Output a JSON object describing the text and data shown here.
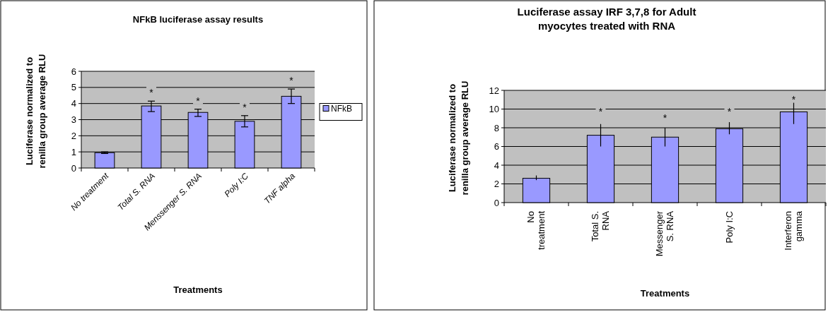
{
  "chart_data": [
    {
      "type": "bar",
      "title": "NFkB luciferase assay results",
      "xlabel": "Treatments",
      "ylabel": "Luciferase normalized to renilla group average RLU",
      "categories": [
        "No treatment",
        "Total S. RNA",
        "Menssenger S. RNA",
        "Poly I:C",
        "TNF alpha"
      ],
      "series": [
        {
          "name": "NFkB",
          "color": "#9999ff",
          "values": [
            0.95,
            3.85,
            3.45,
            2.9,
            4.45
          ],
          "errors": [
            [
              0.9,
              1.0
            ],
            [
              3.5,
              4.15
            ],
            [
              3.2,
              3.65
            ],
            [
              2.55,
              3.25
            ],
            [
              4.0,
              4.9
            ]
          ]
        }
      ],
      "ylim": [
        0,
        6
      ],
      "yticks": [
        0,
        1,
        2,
        3,
        4,
        5,
        6
      ],
      "grid": "y",
      "legend": "right",
      "annotations": [
        {
          "text": "*",
          "x": "Total S. RNA",
          "y": 4.15
        },
        {
          "text": "*",
          "x": "Menssenger S. RNA",
          "y": 3.65
        },
        {
          "text": "*",
          "x": "Poly I:C",
          "y": 3.25
        },
        {
          "text": "*",
          "x": "TNF alpha",
          "y": 4.9
        }
      ]
    },
    {
      "type": "bar",
      "title": "Luciferase assay IRF 3,7,8 for Adult myocytes treated with RNA",
      "xlabel": "Treatments",
      "ylabel": "Luciferase normalized to renilla group average RLU",
      "categories": [
        "No treatment",
        "Total S. RNA",
        "Messenger S. RNA",
        "Poly I:C",
        "Interferon gamma"
      ],
      "series": [
        {
          "color": "#9999ff",
          "values": [
            2.6,
            7.2,
            7.0,
            7.9,
            9.7
          ],
          "errors": [
            [
              2.4,
              2.9
            ],
            [
              6.0,
              8.4
            ],
            [
              6.0,
              8.0
            ],
            [
              7.3,
              8.6
            ],
            [
              8.4,
              10.8
            ]
          ]
        }
      ],
      "ylim": [
        0,
        12
      ],
      "yticks": [
        0,
        2,
        4,
        6,
        8,
        10,
        12
      ],
      "grid": "y",
      "annotations": [
        {
          "text": "*",
          "x": "Total S. RNA",
          "y": 9.85
        },
        {
          "text": "*",
          "x": "Messenger S. RNA",
          "y": 9.2
        },
        {
          "text": "*",
          "x": "Poly I:C",
          "y": 9.9
        },
        {
          "text": "*",
          "x": "Interferon gamma",
          "y": 11.2
        }
      ]
    }
  ]
}
